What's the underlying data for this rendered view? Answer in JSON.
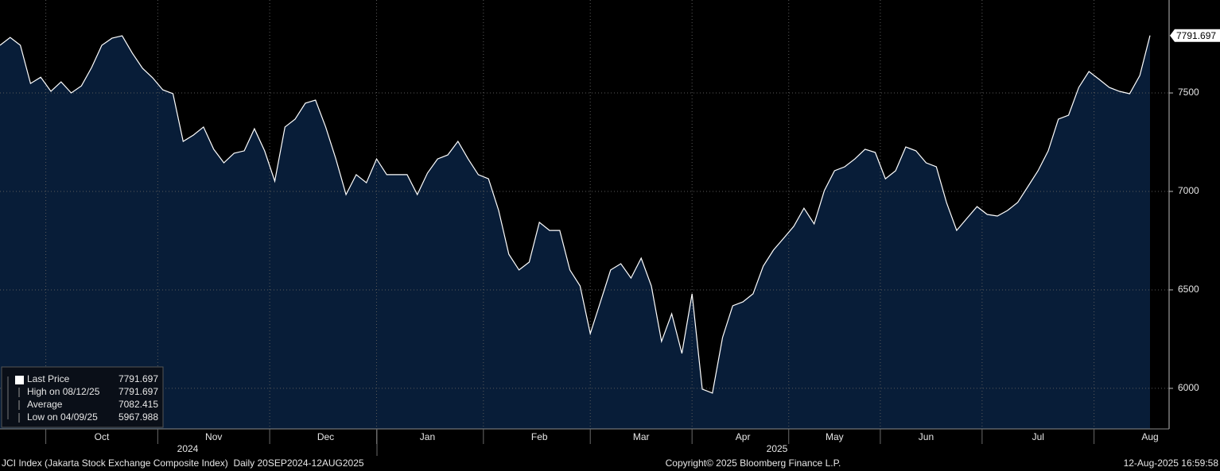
{
  "chart_data": {
    "type": "area",
    "values": [
      7742,
      7782,
      7742,
      7548,
      7580,
      7508,
      7556,
      7500,
      7536,
      7629,
      7742,
      7778,
      7790,
      7702,
      7625,
      7577,
      7516,
      7496,
      7254,
      7286,
      7327,
      7214,
      7145,
      7194,
      7206,
      7318,
      7206,
      7052,
      7327,
      7367,
      7448,
      7464,
      7327,
      7165,
      6984,
      7085,
      7044,
      7165,
      7085,
      7085,
      7085,
      6984,
      7093,
      7165,
      7185,
      7254,
      7165,
      7085,
      7064,
      6903,
      6681,
      6601,
      6641,
      6843,
      6802,
      6802,
      6601,
      6520,
      6278,
      6439,
      6601,
      6633,
      6560,
      6661,
      6520,
      6238,
      6379,
      6177,
      6480,
      5996,
      5976,
      6258,
      6419,
      6439,
      6480,
      6621,
      6702,
      6762,
      6823,
      6915,
      6835,
      7004,
      7105,
      7125,
      7165,
      7214,
      7198,
      7064,
      7105,
      7226,
      7206,
      7145,
      7125,
      6944,
      6802,
      6863,
      6923,
      6883,
      6875,
      6903,
      6944,
      7024,
      7105,
      7206,
      7367,
      7387,
      7528,
      7609,
      7569,
      7528,
      7508,
      7496,
      7589,
      7791.697
    ],
    "categories": [
      null,
      null,
      null,
      null,
      null,
      null,
      null,
      null,
      null,
      null,
      "Oct",
      null,
      null,
      null,
      null,
      null,
      null,
      null,
      null,
      null,
      null,
      "Nov",
      null,
      null,
      null,
      null,
      null,
      null,
      null,
      null,
      null,
      null,
      "Dec",
      null,
      null,
      null,
      null,
      null,
      null,
      null,
      null,
      null,
      "Jan",
      null,
      null,
      null,
      null,
      null,
      null,
      null,
      null,
      null,
      null,
      "Feb",
      null,
      null,
      null,
      null,
      null,
      null,
      null,
      null,
      null,
      "Mar",
      null,
      null,
      null,
      null,
      null,
      null,
      null,
      null,
      null,
      "Apr",
      null,
      null,
      null,
      null,
      null,
      null,
      null,
      null,
      "May",
      null,
      null,
      null,
      null,
      null,
      null,
      null,
      null,
      "Jun",
      null,
      null,
      null,
      null,
      null,
      null,
      null,
      null,
      null,
      null,
      "Jul",
      null,
      null,
      null,
      null,
      null,
      null,
      null,
      null,
      null,
      null,
      "Aug"
    ],
    "color": "#ffffff",
    "fill": "#081d38",
    "ylim": [
      5794,
      7972
    ],
    "yticks": [
      6000,
      6500,
      7000,
      7500
    ],
    "grid": true,
    "year_labels": [
      "2024",
      "2025"
    ],
    "legend_stats": [
      {
        "label": "Last Price",
        "value": 7791.697
      },
      {
        "label": "High on 08/12/25",
        "value": 7791.697
      },
      {
        "label": "Average",
        "value": 7082.415
      },
      {
        "label": "Low on 04/09/25",
        "value": 5967.988
      }
    ],
    "footer_left": "JCI Index (Jakarta Stock Exchange Composite Index)  Daily 20SEP2024-12AUG2025",
    "footer_center": "Copyright© 2025 Bloomberg Finance L.P.",
    "footer_right": "12-Aug-2025 16:59:58"
  }
}
